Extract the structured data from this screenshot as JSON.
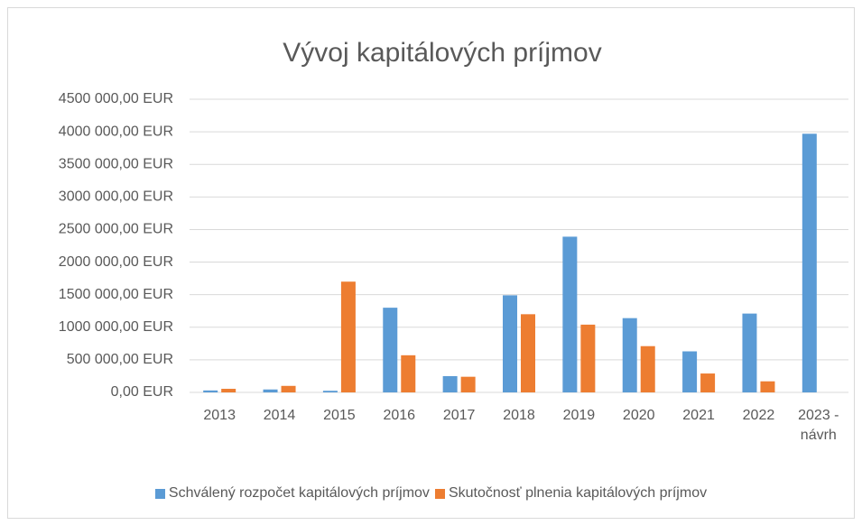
{
  "chart_data": {
    "type": "bar",
    "title": "Vývoj kapitálových príjmov",
    "categories": [
      "2013",
      "2014",
      "2015",
      "2016",
      "2017",
      "2018",
      "2019",
      "2020",
      "2021",
      "2022",
      "2023 - návrh"
    ],
    "series": [
      {
        "name": "Schválený rozpočet kapitálových príjmov",
        "color": "#5b9bd5",
        "values": [
          30000,
          45000,
          25000,
          1300000,
          250000,
          1490000,
          2390000,
          1140000,
          630000,
          1210000,
          3970000
        ]
      },
      {
        "name": "Skutočnosť plnenia kapitálových príjmov",
        "color": "#ed7d31",
        "values": [
          55000,
          100000,
          1700000,
          570000,
          240000,
          1200000,
          1040000,
          710000,
          290000,
          170000,
          null
        ]
      }
    ],
    "ylim": [
      0,
      4500000
    ],
    "yticks": [
      {
        "value": 0,
        "label": "0,00 EUR"
      },
      {
        "value": 500000,
        "label": "500 000,00 EUR"
      },
      {
        "value": 1000000,
        "label": "1000 000,00 EUR"
      },
      {
        "value": 1500000,
        "label": "1500 000,00 EUR"
      },
      {
        "value": 2000000,
        "label": "2000 000,00 EUR"
      },
      {
        "value": 2500000,
        "label": "2500 000,00 EUR"
      },
      {
        "value": 3000000,
        "label": "3000 000,00 EUR"
      },
      {
        "value": 3500000,
        "label": "3500 000,00 EUR"
      },
      {
        "value": 4000000,
        "label": "4000 000,00 EUR"
      },
      {
        "value": 4500000,
        "label": "4500 000,00 EUR"
      }
    ],
    "grid": true,
    "legend": "bottom"
  }
}
